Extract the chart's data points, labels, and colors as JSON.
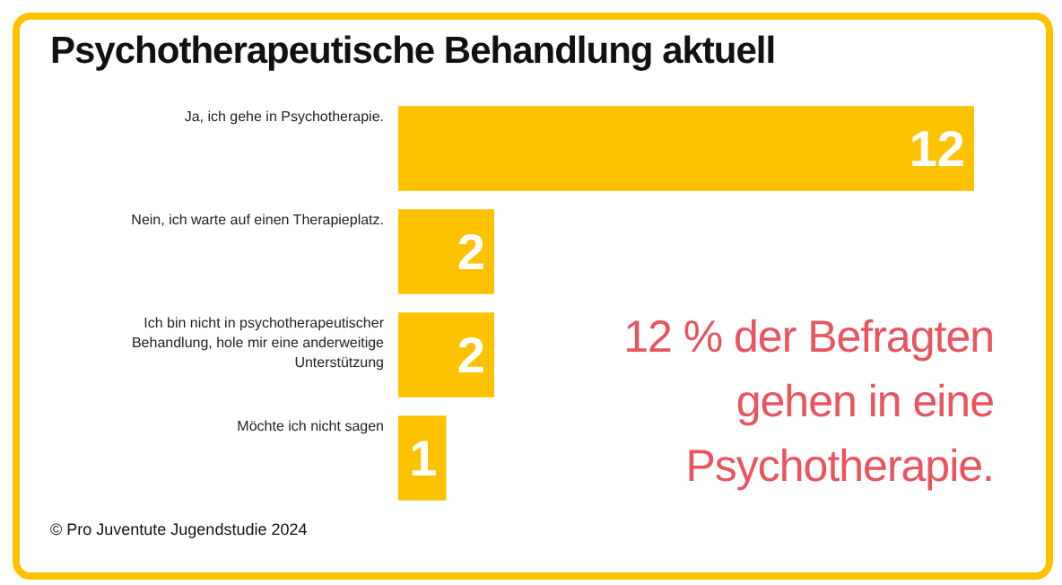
{
  "chart_data": {
    "type": "bar",
    "orientation": "horizontal",
    "title": "Psychotherapeutische Behandlung aktuell",
    "categories": [
      "Ja, ich gehe in Psychotherapie.",
      "Nein, ich warte auf einen Therapieplatz.",
      "Ich bin nicht in psychotherapeutischer Behandlung, hole mir eine anderweitige Unterstützung",
      "Möchte ich nicht sagen"
    ],
    "values": [
      12,
      2,
      2,
      1
    ],
    "color": "#fcc200",
    "data_labels": true,
    "legend": false,
    "annotations": [
      "12 % der Befragten gehen in eine Psychotherapie.",
      "© Pro Juventute Jugendstudie 2024"
    ]
  }
}
